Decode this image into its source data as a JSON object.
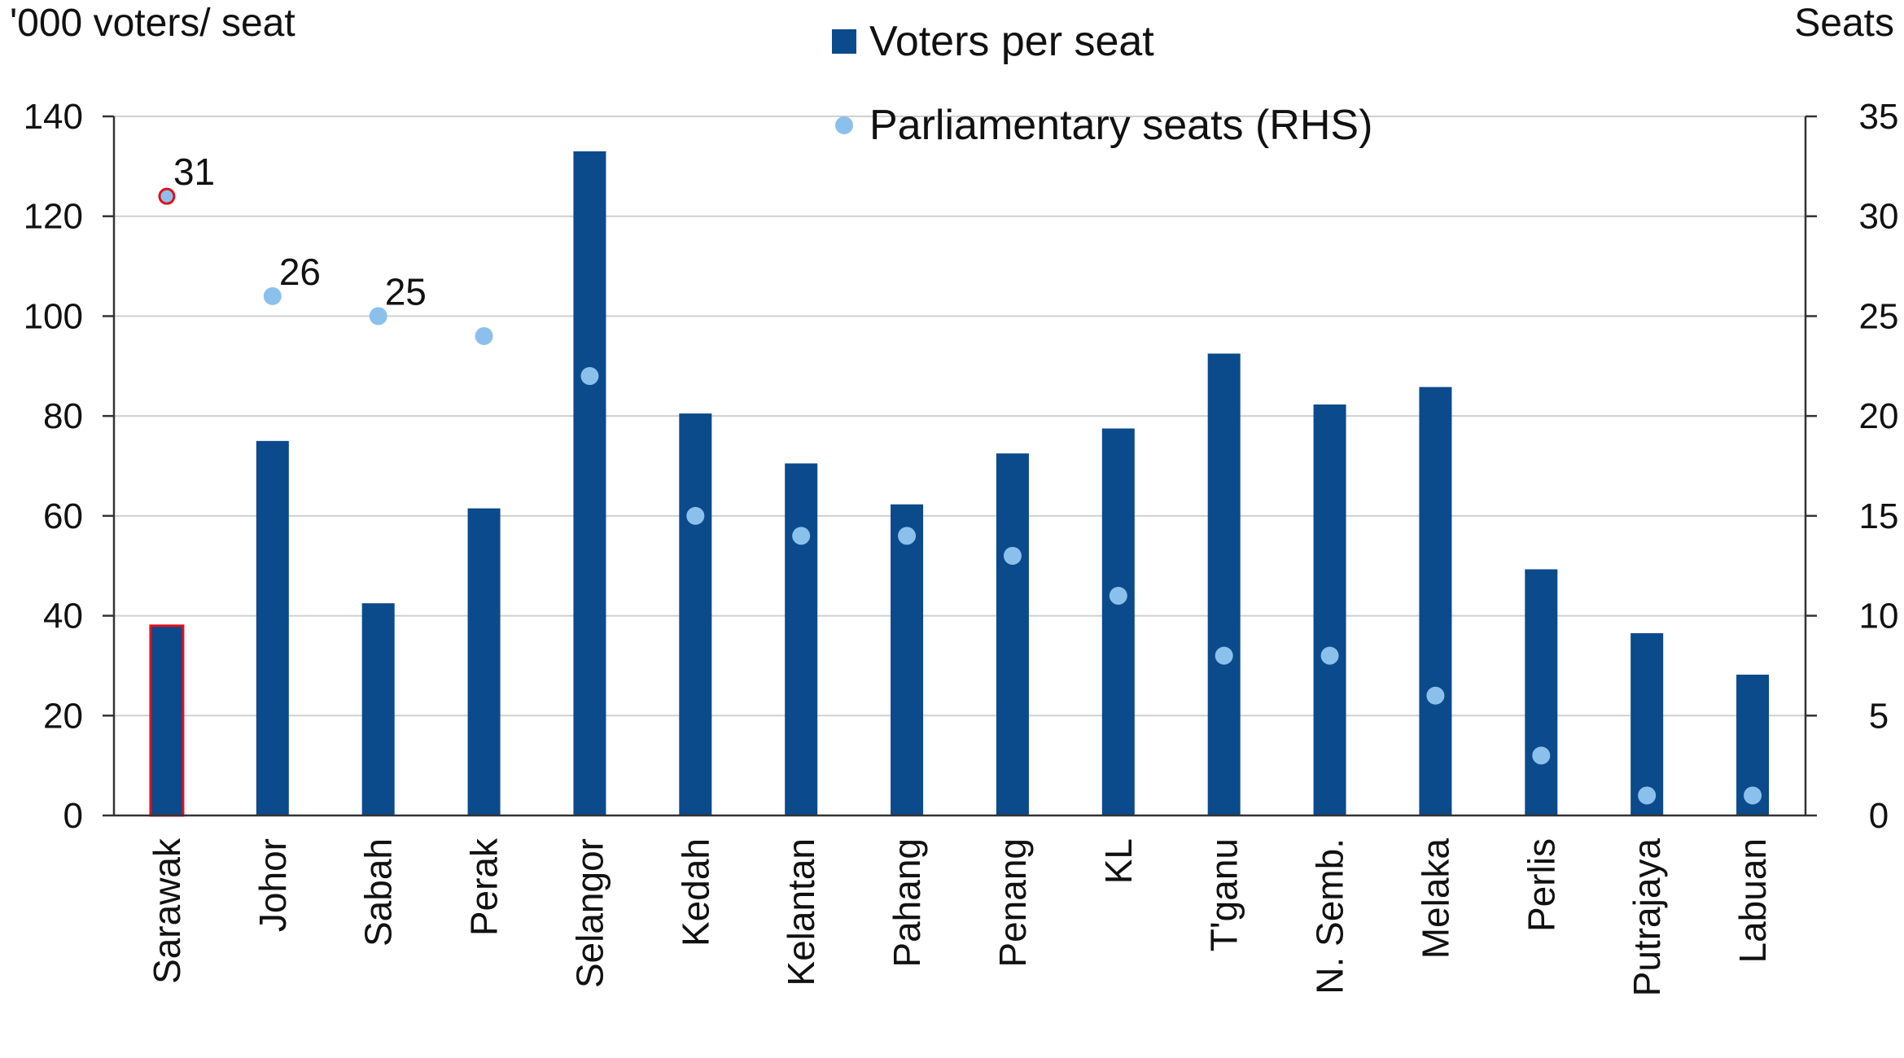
{
  "chart_data": {
    "type": "bar",
    "categories": [
      "Sarawak",
      "Johor",
      "Sabah",
      "Perak",
      "Selangor",
      "Kedah",
      "Kelantan",
      "Pahang",
      "Penang",
      "KL",
      "T'ganu",
      "N. Semb.",
      "Melaka",
      "Perlis",
      "Putrajaya",
      "Labuan"
    ],
    "series": [
      {
        "name": "Voters per seat",
        "type": "bar",
        "axis": "left",
        "color": "#0b4a8b",
        "values": [
          38,
          75,
          42.5,
          61.5,
          133,
          80.5,
          70.5,
          62.3,
          72.5,
          77.5,
          92.5,
          82.3,
          85.8,
          49.3,
          36.5,
          28.2
        ]
      },
      {
        "name": "Parliamentary seats (RHS)",
        "type": "scatter",
        "axis": "right",
        "color": "#8cc0ec",
        "values": [
          31,
          26,
          25,
          24,
          22,
          15,
          14,
          14,
          13,
          11,
          8,
          8,
          6,
          3,
          1,
          1
        ]
      }
    ],
    "highlight": {
      "category": "Sarawak",
      "color": "#e0101e"
    },
    "data_labels": [
      {
        "category": "Sarawak",
        "text": "31"
      },
      {
        "category": "Johor",
        "text": "26"
      },
      {
        "category": "Sabah",
        "text": "25"
      }
    ],
    "ylabel_left": "'000 voters/ seat",
    "ylabel_right": "Seats",
    "ylim_left": [
      0,
      140
    ],
    "ylim_right": [
      0,
      35
    ],
    "yticks_left": [
      "0",
      "20",
      "40",
      "60",
      "80",
      "100",
      "120",
      "140"
    ],
    "yticks_right": [
      "0",
      "5",
      "10",
      "15",
      "20",
      "25",
      "30",
      "35"
    ],
    "legend_position": "top-center",
    "grid": true
  }
}
